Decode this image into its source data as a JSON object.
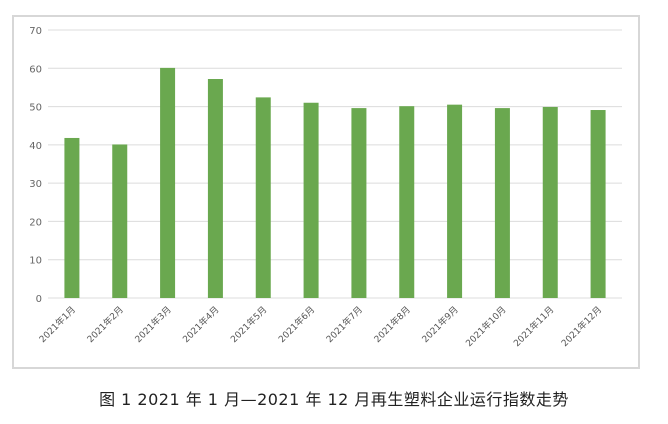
{
  "caption": "图 1  2021 年 1 月—2021 年 12 月再生塑料企业运行指数走势",
  "chart_data": {
    "type": "bar",
    "categories": [
      "2021年1月",
      "2021年2月",
      "2021年3月",
      "2021年4月",
      "2021年5月",
      "2021年6月",
      "2021年7月",
      "2021年8月",
      "2021年9月",
      "2021年10月",
      "2021年11月",
      "2021年12月"
    ],
    "values": [
      41.8,
      40.1,
      60.1,
      57.2,
      52.4,
      51.0,
      49.6,
      50.1,
      50.5,
      49.6,
      49.9,
      49.1
    ],
    "ylim": [
      0,
      70
    ],
    "yticks": [
      0,
      10,
      20,
      30,
      40,
      50,
      60,
      70
    ],
    "grid": true,
    "bar_color": "#6aa84f"
  }
}
